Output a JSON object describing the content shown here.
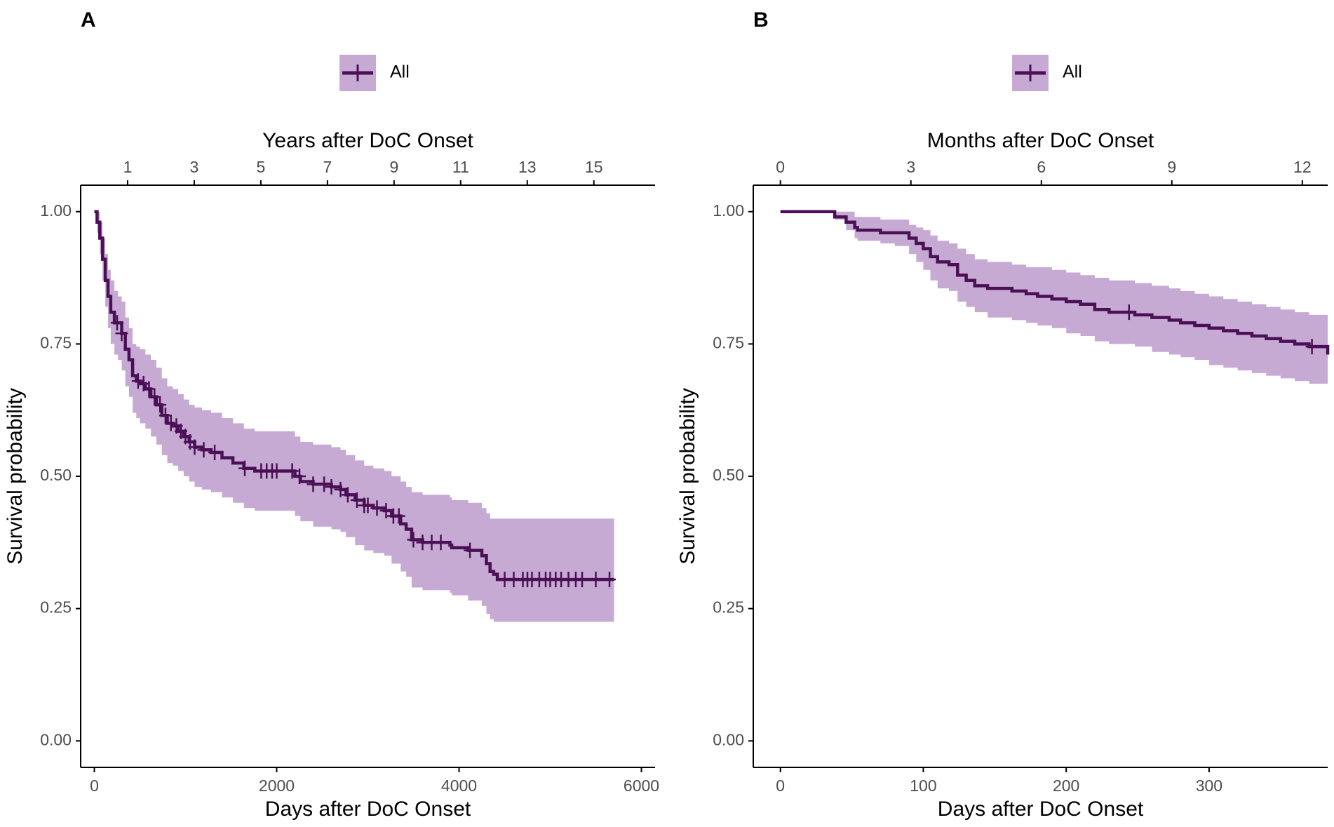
{
  "figure": {
    "colors": {
      "line": "#4b0f55",
      "band": "#c6aad4",
      "axis": "#000000",
      "tick_text": "#4d4d4d"
    }
  },
  "chart_data": [
    {
      "type": "line",
      "chart_subtype": "kaplan-meier",
      "panel": "A",
      "legend": {
        "label": "All",
        "position": "top"
      },
      "xlabel": "Days after DoC Onset",
      "ylabel": "Survival probability",
      "xlim": [
        -150,
        6150
      ],
      "ylim": [
        -0.05,
        1.05
      ],
      "x_ticks": [
        0,
        2000,
        4000,
        6000
      ],
      "x_tick_labels": [
        "0",
        "2000",
        "4000",
        "6000"
      ],
      "y_ticks": [
        0.0,
        0.25,
        0.5,
        0.75,
        1.0
      ],
      "y_tick_labels": [
        "0.00",
        "0.25",
        "0.50",
        "0.75",
        "1.00"
      ],
      "secondary_x": {
        "label": "Years after DoC Onset",
        "unit_days": 365.25,
        "ticks": [
          1,
          3,
          5,
          7,
          9,
          11,
          13,
          15
        ],
        "tick_labels": [
          "1",
          "3",
          "5",
          "7",
          "9",
          "11",
          "13",
          "15"
        ]
      },
      "series": [
        {
          "name": "All",
          "x": [
            0,
            30,
            60,
            90,
            120,
            150,
            180,
            220,
            260,
            300,
            340,
            380,
            420,
            460,
            500,
            560,
            620,
            680,
            740,
            800,
            860,
            920,
            980,
            1040,
            1100,
            1180,
            1280,
            1400,
            1520,
            1640,
            1760,
            2100,
            2200,
            2260,
            2400,
            2600,
            2700,
            2760,
            2860,
            2960,
            3060,
            3180,
            3260,
            3360,
            3420,
            3480,
            3600,
            3900,
            3920,
            4100,
            4250,
            4300,
            4340,
            4380,
            4420,
            5700
          ],
          "y": [
            1.0,
            0.98,
            0.95,
            0.91,
            0.87,
            0.84,
            0.81,
            0.79,
            0.79,
            0.77,
            0.74,
            0.72,
            0.69,
            0.68,
            0.675,
            0.665,
            0.65,
            0.635,
            0.615,
            0.6,
            0.595,
            0.585,
            0.575,
            0.565,
            0.555,
            0.55,
            0.545,
            0.535,
            0.525,
            0.515,
            0.51,
            0.51,
            0.5,
            0.49,
            0.485,
            0.48,
            0.475,
            0.465,
            0.455,
            0.445,
            0.44,
            0.435,
            0.425,
            0.41,
            0.4,
            0.38,
            0.375,
            0.37,
            0.365,
            0.36,
            0.35,
            0.335,
            0.32,
            0.315,
            0.305,
            0.305
          ],
          "lower": [
            1.0,
            0.96,
            0.92,
            0.87,
            0.82,
            0.78,
            0.75,
            0.73,
            0.72,
            0.7,
            0.67,
            0.65,
            0.62,
            0.61,
            0.6,
            0.59,
            0.575,
            0.56,
            0.54,
            0.525,
            0.52,
            0.51,
            0.5,
            0.49,
            0.48,
            0.475,
            0.47,
            0.46,
            0.45,
            0.44,
            0.435,
            0.435,
            0.425,
            0.415,
            0.405,
            0.4,
            0.395,
            0.385,
            0.37,
            0.36,
            0.355,
            0.35,
            0.335,
            0.32,
            0.31,
            0.29,
            0.285,
            0.28,
            0.275,
            0.265,
            0.255,
            0.24,
            0.23,
            0.225,
            0.225,
            0.225
          ],
          "upper": [
            1.0,
            1.0,
            0.98,
            0.95,
            0.92,
            0.89,
            0.87,
            0.85,
            0.84,
            0.83,
            0.8,
            0.78,
            0.75,
            0.745,
            0.74,
            0.73,
            0.72,
            0.705,
            0.685,
            0.67,
            0.665,
            0.655,
            0.645,
            0.635,
            0.63,
            0.625,
            0.62,
            0.61,
            0.6,
            0.59,
            0.585,
            0.585,
            0.575,
            0.565,
            0.56,
            0.555,
            0.55,
            0.54,
            0.53,
            0.52,
            0.515,
            0.51,
            0.5,
            0.49,
            0.48,
            0.47,
            0.465,
            0.46,
            0.455,
            0.45,
            0.44,
            0.43,
            0.42,
            0.42,
            0.42,
            0.42
          ],
          "censored_x": [
            250,
            300,
            480,
            540,
            600,
            660,
            720,
            780,
            840,
            900,
            950,
            1000,
            1050,
            1100,
            1200,
            1320,
            1650,
            1830,
            1890,
            1950,
            2000,
            2170,
            2250,
            2400,
            2520,
            2600,
            2700,
            2780,
            2880,
            2960,
            3000,
            3100,
            3200,
            3280,
            3340,
            3500,
            3600,
            3700,
            3800,
            4120,
            4500,
            4600,
            4700,
            4750,
            4800,
            4880,
            4950,
            5000,
            5060,
            5120,
            5200,
            5280,
            5350,
            5500,
            5650
          ]
        }
      ]
    },
    {
      "type": "line",
      "chart_subtype": "kaplan-meier",
      "panel": "B",
      "legend": {
        "label": "All",
        "position": "top"
      },
      "xlabel": "Days after DoC Onset",
      "ylabel": "Survival probability",
      "xlim": [
        -19,
        383
      ],
      "ylim": [
        -0.05,
        1.05
      ],
      "x_ticks": [
        0,
        100,
        200,
        300
      ],
      "x_tick_labels": [
        "0",
        "100",
        "200",
        "300"
      ],
      "y_ticks": [
        0.0,
        0.25,
        0.5,
        0.75,
        1.0
      ],
      "y_tick_labels": [
        "0.00",
        "0.25",
        "0.50",
        "0.75",
        "1.00"
      ],
      "secondary_x": {
        "label": "Months after DoC Onset",
        "unit_days": 30.4375,
        "ticks": [
          0,
          3,
          6,
          9,
          12
        ],
        "tick_labels": [
          "0",
          "3",
          "6",
          "9",
          "12"
        ]
      },
      "series": [
        {
          "name": "All",
          "x": [
            0,
            38,
            46,
            52,
            54,
            60,
            70,
            80,
            90,
            95,
            100,
            105,
            110,
            118,
            124,
            130,
            136,
            145,
            162,
            172,
            180,
            190,
            200,
            210,
            220,
            230,
            248,
            260,
            272,
            280,
            290,
            300,
            310,
            320,
            330,
            340,
            350,
            360,
            370,
            383
          ],
          "y": [
            1.0,
            0.99,
            0.98,
            0.97,
            0.965,
            0.965,
            0.96,
            0.96,
            0.95,
            0.94,
            0.93,
            0.915,
            0.905,
            0.9,
            0.88,
            0.87,
            0.86,
            0.855,
            0.85,
            0.845,
            0.84,
            0.835,
            0.83,
            0.825,
            0.815,
            0.81,
            0.805,
            0.8,
            0.795,
            0.79,
            0.785,
            0.78,
            0.775,
            0.77,
            0.765,
            0.76,
            0.755,
            0.75,
            0.745,
            0.73
          ],
          "lower": [
            1.0,
            0.985,
            0.965,
            0.95,
            0.945,
            0.945,
            0.94,
            0.935,
            0.92,
            0.905,
            0.89,
            0.87,
            0.855,
            0.85,
            0.83,
            0.82,
            0.81,
            0.8,
            0.795,
            0.79,
            0.785,
            0.78,
            0.77,
            0.765,
            0.755,
            0.75,
            0.745,
            0.735,
            0.73,
            0.725,
            0.72,
            0.71,
            0.705,
            0.7,
            0.695,
            0.69,
            0.685,
            0.68,
            0.675,
            0.665
          ],
          "upper": [
            1.0,
            1.0,
            1.0,
            0.99,
            0.99,
            0.99,
            0.985,
            0.985,
            0.975,
            0.97,
            0.965,
            0.955,
            0.945,
            0.94,
            0.93,
            0.92,
            0.91,
            0.905,
            0.9,
            0.895,
            0.895,
            0.89,
            0.885,
            0.88,
            0.875,
            0.87,
            0.865,
            0.86,
            0.855,
            0.85,
            0.845,
            0.84,
            0.835,
            0.83,
            0.825,
            0.82,
            0.815,
            0.81,
            0.805,
            0.8
          ],
          "censored_x": [
            244,
            372
          ]
        }
      ]
    }
  ]
}
